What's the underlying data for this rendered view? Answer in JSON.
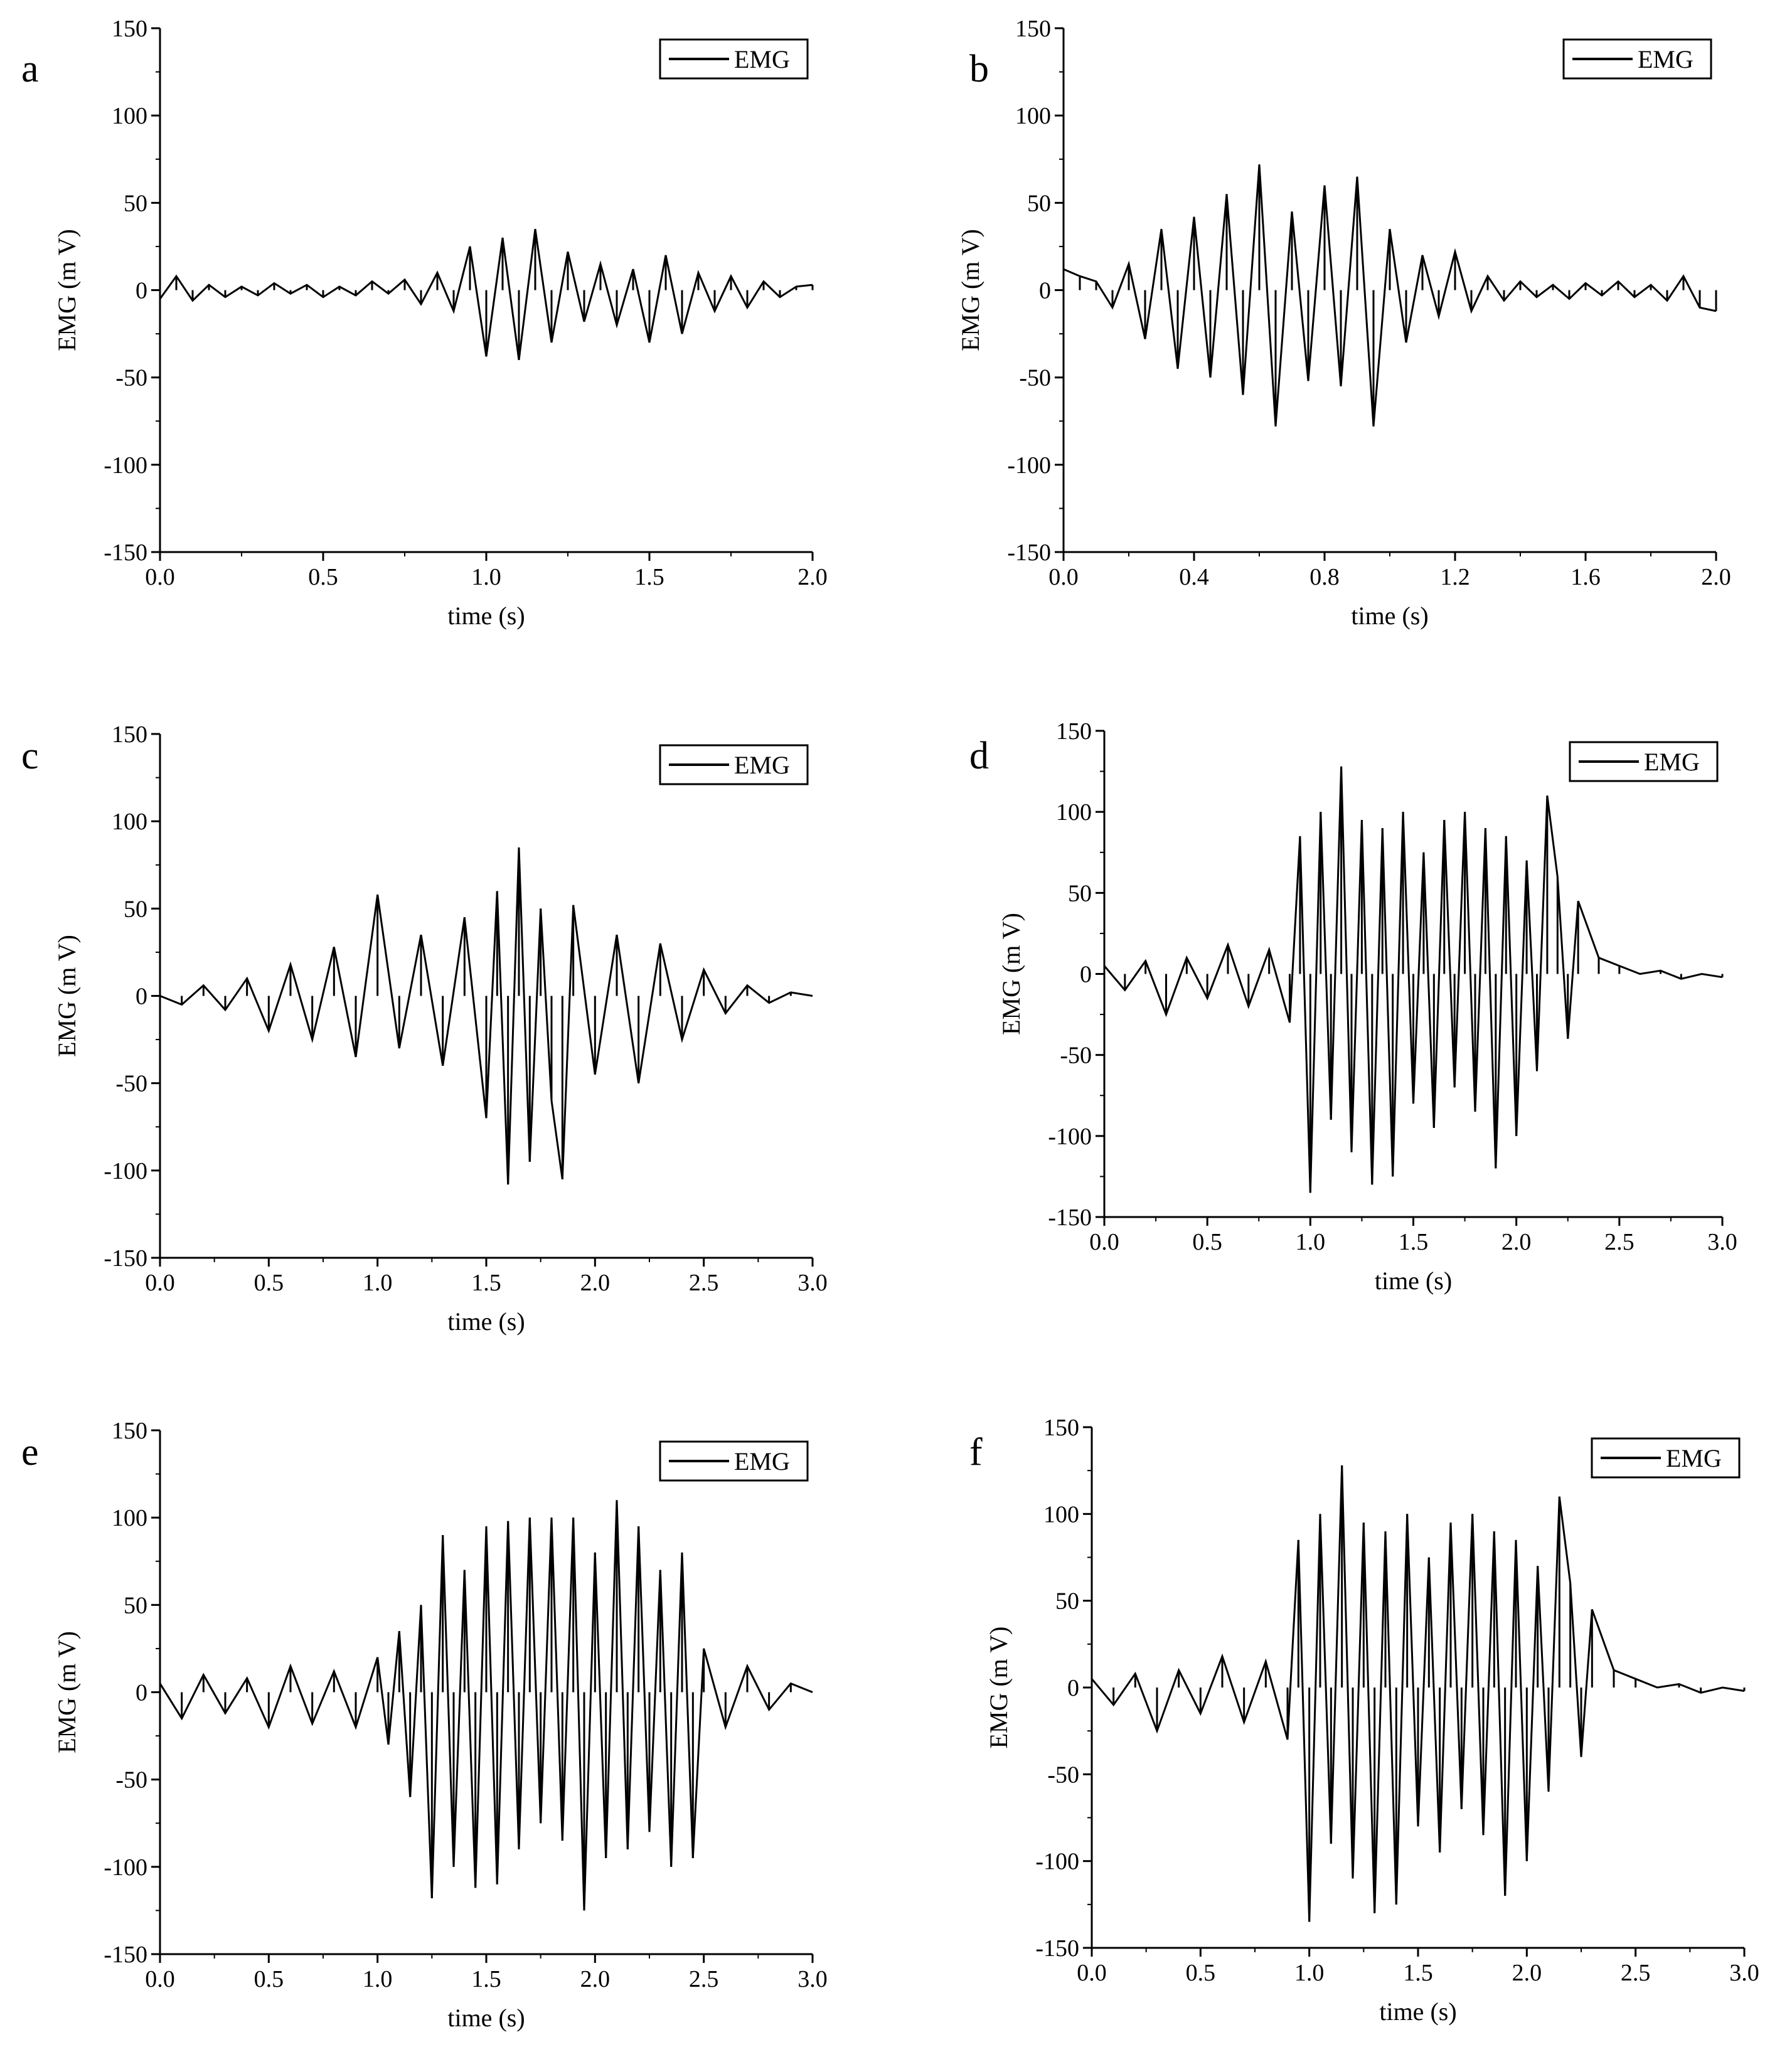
{
  "chart_data": [
    {
      "panel": "a",
      "type": "line",
      "xlabel": "time (s)",
      "ylabel": "EMG (m V)",
      "xlim": [
        0,
        2.0
      ],
      "ylim": [
        -150,
        150
      ],
      "xticks": [
        "0.0",
        "0.5",
        "1.0",
        "1.5",
        "2.0"
      ],
      "yticks": [
        "-150",
        "-100",
        "-50",
        "0",
        "50",
        "100",
        "150"
      ],
      "legend": "top-right",
      "series": [
        {
          "name": "EMG",
          "color": "#000000",
          "x": [
            0.0,
            0.05,
            0.1,
            0.15,
            0.2,
            0.25,
            0.3,
            0.35,
            0.4,
            0.45,
            0.5,
            0.55,
            0.6,
            0.65,
            0.7,
            0.75,
            0.8,
            0.85,
            0.9,
            0.95,
            1.0,
            1.05,
            1.1,
            1.15,
            1.2,
            1.25,
            1.3,
            1.35,
            1.4,
            1.45,
            1.5,
            1.55,
            1.6,
            1.65,
            1.7,
            1.75,
            1.8,
            1.85,
            1.9,
            1.95,
            2.0
          ],
          "values": [
            -5,
            8,
            -6,
            3,
            -4,
            2,
            -3,
            4,
            -2,
            3,
            -4,
            2,
            -3,
            5,
            -2,
            6,
            -8,
            10,
            -12,
            25,
            -38,
            30,
            -40,
            35,
            -30,
            22,
            -18,
            15,
            -20,
            12,
            -30,
            20,
            -25,
            10,
            -12,
            8,
            -10,
            5,
            -4,
            2,
            3
          ]
        }
      ]
    },
    {
      "panel": "b",
      "type": "line",
      "xlabel": "time (s)",
      "ylabel": "EMG (m V)",
      "xlim": [
        0,
        2.0
      ],
      "ylim": [
        -150,
        150
      ],
      "xticks": [
        "0.0",
        "0.4",
        "0.8",
        "1.2",
        "1.6",
        "2.0"
      ],
      "yticks": [
        "-150",
        "-100",
        "-50",
        "0",
        "50",
        "100",
        "150"
      ],
      "legend": "top-right",
      "series": [
        {
          "name": "EMG",
          "color": "#000000",
          "x": [
            0.0,
            0.05,
            0.1,
            0.15,
            0.2,
            0.25,
            0.3,
            0.35,
            0.4,
            0.45,
            0.5,
            0.55,
            0.6,
            0.65,
            0.7,
            0.75,
            0.8,
            0.85,
            0.9,
            0.95,
            1.0,
            1.05,
            1.1,
            1.15,
            1.2,
            1.25,
            1.3,
            1.35,
            1.4,
            1.45,
            1.5,
            1.55,
            1.6,
            1.65,
            1.7,
            1.75,
            1.8,
            1.85,
            1.9,
            1.95,
            2.0
          ],
          "values": [
            12,
            8,
            5,
            -10,
            15,
            -28,
            35,
            -45,
            42,
            -50,
            55,
            -60,
            72,
            -78,
            45,
            -52,
            60,
            -55,
            65,
            -78,
            35,
            -30,
            20,
            -15,
            22,
            -12,
            8,
            -6,
            5,
            -4,
            3,
            -5,
            4,
            -3,
            5,
            -4,
            3,
            -6,
            8,
            -10,
            -12
          ]
        }
      ]
    },
    {
      "panel": "c",
      "type": "line",
      "xlabel": "time (s)",
      "ylabel": "EMG (m V)",
      "xlim": [
        0,
        3.0
      ],
      "ylim": [
        -150,
        150
      ],
      "xticks": [
        "0.0",
        "0.5",
        "1.0",
        "1.5",
        "2.0",
        "2.5",
        "3.0"
      ],
      "yticks": [
        "-150",
        "-100",
        "-50",
        "0",
        "50",
        "100",
        "150"
      ],
      "legend": "top-right",
      "series": [
        {
          "name": "EMG",
          "color": "#000000",
          "x": [
            0.0,
            0.1,
            0.2,
            0.3,
            0.4,
            0.5,
            0.6,
            0.7,
            0.8,
            0.9,
            1.0,
            1.1,
            1.2,
            1.3,
            1.4,
            1.5,
            1.55,
            1.6,
            1.65,
            1.7,
            1.75,
            1.8,
            1.85,
            1.9,
            2.0,
            2.1,
            2.2,
            2.3,
            2.4,
            2.5,
            2.6,
            2.7,
            2.8,
            2.9,
            3.0
          ],
          "values": [
            0,
            -5,
            6,
            -8,
            10,
            -20,
            18,
            -25,
            28,
            -35,
            58,
            -30,
            35,
            -40,
            45,
            -70,
            60,
            -108,
            85,
            -95,
            50,
            -60,
            -105,
            52,
            -45,
            35,
            -50,
            30,
            -25,
            15,
            -10,
            6,
            -4,
            2,
            0
          ]
        }
      ]
    },
    {
      "panel": "d",
      "type": "line",
      "xlabel": "time (s)",
      "ylabel": "EMG (m V)",
      "xlim": [
        0,
        3.0
      ],
      "ylim": [
        -150,
        150
      ],
      "xticks": [
        "0.0",
        "0.5",
        "1.0",
        "1.5",
        "2.0",
        "2.5",
        "3.0"
      ],
      "yticks": [
        "-150",
        "-100",
        "-50",
        "0",
        "50",
        "100",
        "150"
      ],
      "legend": "top-right",
      "series": [
        {
          "name": "EMG",
          "color": "#000000",
          "x": [
            0.0,
            0.1,
            0.2,
            0.3,
            0.4,
            0.5,
            0.6,
            0.7,
            0.8,
            0.9,
            0.95,
            1.0,
            1.05,
            1.1,
            1.15,
            1.2,
            1.25,
            1.3,
            1.35,
            1.4,
            1.45,
            1.5,
            1.55,
            1.6,
            1.65,
            1.7,
            1.75,
            1.8,
            1.85,
            1.9,
            1.95,
            2.0,
            2.05,
            2.1,
            2.15,
            2.2,
            2.25,
            2.3,
            2.4,
            2.5,
            2.6,
            2.7,
            2.8,
            2.9,
            3.0
          ],
          "values": [
            5,
            -10,
            8,
            -25,
            10,
            -15,
            18,
            -20,
            15,
            -30,
            85,
            -135,
            100,
            -90,
            128,
            -110,
            95,
            -130,
            90,
            -125,
            100,
            -80,
            75,
            -95,
            95,
            -70,
            100,
            -85,
            90,
            -120,
            85,
            -100,
            70,
            -60,
            110,
            60,
            -40,
            45,
            10,
            5,
            0,
            2,
            -3,
            0,
            -2
          ]
        }
      ]
    },
    {
      "panel": "e",
      "type": "line",
      "xlabel": "time (s)",
      "ylabel": "EMG (m V)",
      "xlim": [
        0,
        3.0
      ],
      "ylim": [
        -150,
        150
      ],
      "xticks": [
        "0.0",
        "0.5",
        "1.0",
        "1.5",
        "2.0",
        "2.5",
        "3.0"
      ],
      "yticks": [
        "-150",
        "-100",
        "-50",
        "0",
        "50",
        "100",
        "150"
      ],
      "legend": "top-right",
      "series": [
        {
          "name": "EMG",
          "color": "#000000",
          "x": [
            0.0,
            0.1,
            0.2,
            0.3,
            0.4,
            0.5,
            0.6,
            0.7,
            0.8,
            0.9,
            1.0,
            1.05,
            1.1,
            1.15,
            1.2,
            1.25,
            1.3,
            1.35,
            1.4,
            1.45,
            1.5,
            1.55,
            1.6,
            1.65,
            1.7,
            1.75,
            1.8,
            1.85,
            1.9,
            1.95,
            2.0,
            2.05,
            2.1,
            2.15,
            2.2,
            2.25,
            2.3,
            2.35,
            2.4,
            2.45,
            2.5,
            2.6,
            2.7,
            2.8,
            2.9,
            3.0
          ],
          "values": [
            5,
            -15,
            10,
            -12,
            8,
            -20,
            15,
            -18,
            12,
            -20,
            20,
            -30,
            35,
            -60,
            50,
            -118,
            90,
            -100,
            70,
            -112,
            95,
            -110,
            98,
            -90,
            100,
            -75,
            100,
            -85,
            100,
            -125,
            80,
            -95,
            110,
            -90,
            95,
            -80,
            70,
            -100,
            80,
            -95,
            25,
            -20,
            15,
            -10,
            5,
            0
          ]
        }
      ]
    },
    {
      "panel": "f",
      "type": "line",
      "xlabel": "time (s)",
      "ylabel": "EMG (m V)",
      "xlim": [
        0,
        3.0
      ],
      "ylim": [
        -150,
        150
      ],
      "xticks": [
        "0.0",
        "0.5",
        "1.0",
        "1.5",
        "2.0",
        "2.5",
        "3.0"
      ],
      "yticks": [
        "-150",
        "-100",
        "-50",
        "0",
        "50",
        "100",
        "150"
      ],
      "legend": "top-right",
      "series": [
        {
          "name": "EMG",
          "color": "#000000",
          "x": [
            0.0,
            0.1,
            0.2,
            0.3,
            0.4,
            0.5,
            0.6,
            0.7,
            0.8,
            0.9,
            0.95,
            1.0,
            1.05,
            1.1,
            1.15,
            1.2,
            1.25,
            1.3,
            1.35,
            1.4,
            1.45,
            1.5,
            1.55,
            1.6,
            1.65,
            1.7,
            1.75,
            1.8,
            1.85,
            1.9,
            1.95,
            2.0,
            2.05,
            2.1,
            2.15,
            2.2,
            2.25,
            2.3,
            2.4,
            2.5,
            2.6,
            2.7,
            2.8,
            2.9,
            3.0
          ],
          "values": [
            5,
            -10,
            8,
            -25,
            10,
            -15,
            18,
            -20,
            15,
            -30,
            85,
            -135,
            100,
            -90,
            128,
            -110,
            95,
            -130,
            90,
            -125,
            100,
            -80,
            75,
            -95,
            95,
            -70,
            100,
            -85,
            90,
            -120,
            85,
            -100,
            70,
            -60,
            110,
            60,
            -40,
            45,
            10,
            5,
            0,
            2,
            -3,
            0,
            -2
          ]
        }
      ]
    }
  ]
}
